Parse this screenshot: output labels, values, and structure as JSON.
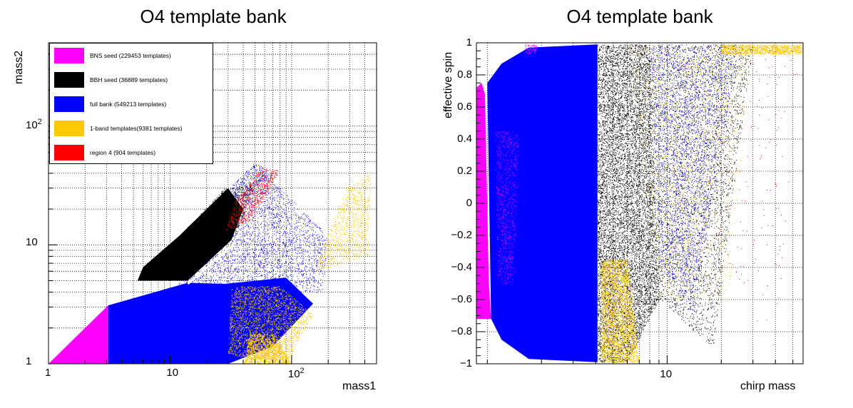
{
  "colors": {
    "magenta": "#ff00ff",
    "black": "#000000",
    "blue": "#0000ff",
    "orange": "#ffc800",
    "red": "#ff0000",
    "white": "#ffffff"
  },
  "chart_data": [
    {
      "type": "scatter",
      "title": "O4 template bank",
      "xlabel": "mass1",
      "ylabel": "mass2",
      "xscale": "log",
      "yscale": "log",
      "xlim": [
        1,
        500
      ],
      "ylim": [
        1,
        500
      ],
      "grid": true,
      "legend_position": "top-left",
      "xticks": [
        {
          "value": 1,
          "label": "1"
        },
        {
          "value": 10,
          "label": "10"
        },
        {
          "value": 100,
          "base": "10",
          "exp": "2"
        }
      ],
      "yticks": [
        {
          "value": 1,
          "label": "1"
        },
        {
          "value": 10,
          "label": "10"
        },
        {
          "value": 100,
          "base": "10",
          "exp": "2"
        }
      ],
      "series": [
        {
          "name": "BNS seed (229453 templates)",
          "color": "#ff00ff"
        },
        {
          "name": "BBH seed (36889 templates)",
          "color": "#000000"
        },
        {
          "name": "full bank (549213 templates)",
          "color": "#0000ff"
        },
        {
          "name": "1-band templates(9381 templates)",
          "color": "#ffc800"
        },
        {
          "name": "region 4 (904 templates)",
          "color": "#ff0000"
        }
      ]
    },
    {
      "type": "scatter",
      "title": "O4 template bank",
      "xlabel": "chirp mass",
      "ylabel": "effective spin",
      "xscale": "log",
      "xlim": [
        0.87,
        57
      ],
      "ylim": [
        -1,
        1
      ],
      "grid": true,
      "xticks": [
        {
          "value": 10,
          "label": "10"
        }
      ],
      "yticks": [
        {
          "value": -1,
          "label": "−1"
        },
        {
          "value": -0.8,
          "label": "−0.8"
        },
        {
          "value": -0.6,
          "label": "−0.6"
        },
        {
          "value": -0.4,
          "label": "−0.4"
        },
        {
          "value": -0.2,
          "label": "−0.2"
        },
        {
          "value": 0,
          "label": "0"
        },
        {
          "value": 0.2,
          "label": "0.2"
        },
        {
          "value": 0.4,
          "label": "0.4"
        },
        {
          "value": 0.6,
          "label": "0.6"
        },
        {
          "value": 0.8,
          "label": "0.8"
        },
        {
          "value": 1,
          "label": "1"
        }
      ]
    }
  ]
}
